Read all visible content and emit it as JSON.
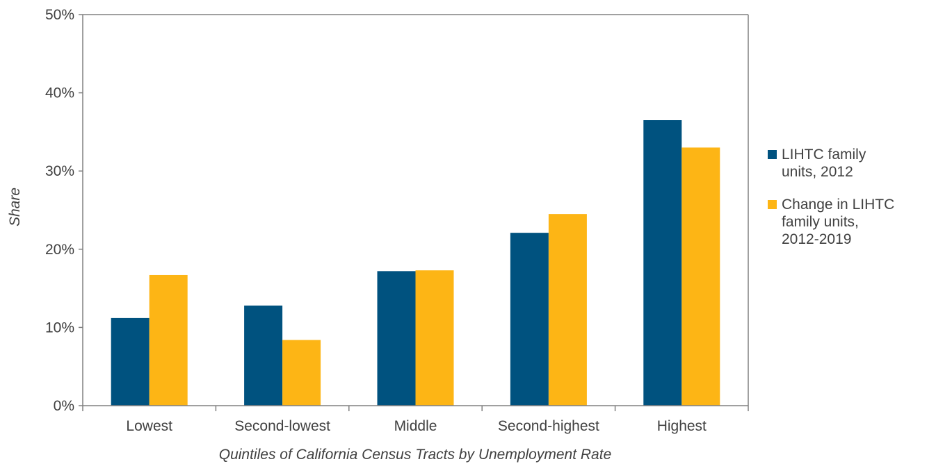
{
  "chart_data": {
    "type": "bar",
    "title": "",
    "xlabel": "Quintiles of California Census Tracts by Unemployment Rate",
    "ylabel": "Share",
    "categories": [
      "Lowest",
      "Second-lowest",
      "Middle",
      "Second-highest",
      "Highest"
    ],
    "ylim": [
      0,
      50
    ],
    "yticks": [
      0,
      10,
      20,
      30,
      40,
      50
    ],
    "ytick_labels": [
      "0%",
      "10%",
      "20%",
      "30%",
      "40%",
      "50%"
    ],
    "grid": false,
    "legend_position": "right",
    "series": [
      {
        "name": "LIHTC family units, 2012",
        "color": "#00527F",
        "values": [
          11.2,
          12.8,
          17.2,
          22.1,
          36.5
        ]
      },
      {
        "name": "Change in LIHTC family units, 2012-2019",
        "color": "#FDB515",
        "values": [
          16.7,
          8.4,
          17.3,
          24.5,
          33.0
        ]
      }
    ],
    "legend_lines": [
      [
        "LIHTC family",
        "units, 2012"
      ],
      [
        "Change in LIHTC",
        "family units,",
        "2012-2019"
      ]
    ]
  }
}
